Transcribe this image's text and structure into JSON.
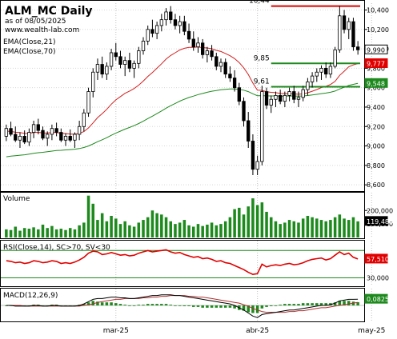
{
  "header": {
    "title": "ALM_MC Daily",
    "date_line": "as of 08/05/2025",
    "site": "www.wealth-lab.com"
  },
  "colors": {
    "price_up": "#ffffff",
    "price_down": "#000000",
    "ema21": "#d42020",
    "ema70": "#1e8a1e",
    "level_line_red": "#e00000",
    "level_line_green": "#1e8a1e",
    "volume": "#1e8a1e",
    "rsi": "#e00000",
    "macd": "#000000",
    "macd_signal": "#b03030",
    "macd_hist": "#1e8a1e",
    "last_price_bg": "#ffffff",
    "ema21_badge": "#e00000",
    "ema70_badge": "#1e8a1e"
  },
  "chart_data": [
    {
      "type": "candlestick",
      "panel": "price",
      "legend": [
        "EMA(Close,21)",
        "EMA(Close,70)"
      ],
      "y_ticks": [
        "10,400",
        "10,200",
        "10,000",
        "9,800",
        "9,600",
        "9,400",
        "9,200",
        "9,000",
        "8,800",
        "8,600"
      ],
      "y_tick_values": [
        10400,
        10200,
        10000,
        9800,
        9600,
        9400,
        9200,
        9000,
        8800,
        8600
      ],
      "ylim": [
        8560,
        10470
      ],
      "x_labels": [
        "mar-25",
        "abr-25",
        "may-25"
      ],
      "x_label_bars": [
        24,
        55,
        80
      ],
      "levels": [
        {
          "label": "10,44",
          "value": 10440,
          "from_bar": 58,
          "color": "red"
        },
        {
          "label": "9,85",
          "value": 9850,
          "from_bar": 58,
          "color": "green"
        },
        {
          "label": "9,61",
          "value": 9610,
          "from_bar": 58,
          "color": "green"
        }
      ],
      "last_price_label": "9,990",
      "ema21_label": "9,777",
      "ema70_label": "9,548",
      "candles": [
        [
          9100,
          9220,
          9050,
          9180
        ],
        [
          9180,
          9250,
          9100,
          9120
        ],
        [
          9120,
          9200,
          9040,
          9060
        ],
        [
          9060,
          9140,
          8980,
          9100
        ],
        [
          9100,
          9160,
          9020,
          9040
        ],
        [
          9040,
          9180,
          9000,
          9140
        ],
        [
          9140,
          9260,
          9080,
          9220
        ],
        [
          9220,
          9280,
          9120,
          9160
        ],
        [
          9160,
          9200,
          9060,
          9080
        ],
        [
          9080,
          9150,
          9000,
          9120
        ],
        [
          9120,
          9220,
          9060,
          9180
        ],
        [
          9180,
          9240,
          9100,
          9140
        ],
        [
          9140,
          9180,
          9040,
          9060
        ],
        [
          9060,
          9130,
          9000,
          9100
        ],
        [
          9100,
          9170,
          9040,
          9060
        ],
        [
          9060,
          9140,
          8980,
          9120
        ],
        [
          9120,
          9260,
          9060,
          9200
        ],
        [
          9200,
          9380,
          9150,
          9340
        ],
        [
          9340,
          9600,
          9300,
          9560
        ],
        [
          9560,
          9800,
          9500,
          9760
        ],
        [
          9760,
          9900,
          9680,
          9840
        ],
        [
          9840,
          9920,
          9700,
          9740
        ],
        [
          9740,
          9860,
          9680,
          9820
        ],
        [
          9820,
          10000,
          9780,
          9960
        ],
        [
          9960,
          10060,
          9880,
          9920
        ],
        [
          9920,
          9980,
          9800,
          9840
        ],
        [
          9840,
          9920,
          9720,
          9880
        ],
        [
          9880,
          9960,
          9760,
          9800
        ],
        [
          9800,
          9880,
          9700,
          9850
        ],
        [
          9850,
          10020,
          9800,
          9980
        ],
        [
          9980,
          10120,
          9940,
          10080
        ],
        [
          10080,
          10240,
          10040,
          10200
        ],
        [
          10200,
          10300,
          10120,
          10160
        ],
        [
          10160,
          10280,
          10100,
          10240
        ],
        [
          10240,
          10360,
          10180,
          10300
        ],
        [
          10300,
          10420,
          10240,
          10380
        ],
        [
          10380,
          10440,
          10260,
          10300
        ],
        [
          10300,
          10360,
          10200,
          10240
        ],
        [
          10240,
          10340,
          10160,
          10280
        ],
        [
          10280,
          10340,
          10140,
          10180
        ],
        [
          10180,
          10260,
          10060,
          10100
        ],
        [
          10100,
          10180,
          9980,
          10020
        ],
        [
          10020,
          10120,
          9960,
          10060
        ],
        [
          10060,
          10100,
          9900,
          9940
        ],
        [
          9940,
          10020,
          9860,
          9980
        ],
        [
          9980,
          10040,
          9880,
          9920
        ],
        [
          9920,
          9960,
          9780,
          9820
        ],
        [
          9820,
          9900,
          9760,
          9860
        ],
        [
          9860,
          9900,
          9700,
          9740
        ],
        [
          9740,
          9820,
          9660,
          9700
        ],
        [
          9700,
          9780,
          9560,
          9600
        ],
        [
          9600,
          9650,
          9420,
          9460
        ],
        [
          9460,
          9500,
          9200,
          9260
        ],
        [
          9260,
          9350,
          8980,
          9050
        ],
        [
          9050,
          9120,
          8700,
          8760
        ],
        [
          8760,
          8900,
          8700,
          8840
        ],
        [
          8840,
          9620,
          8800,
          9560
        ],
        [
          9560,
          9600,
          9380,
          9420
        ],
        [
          9420,
          9520,
          9340,
          9480
        ],
        [
          9480,
          9560,
          9400,
          9520
        ],
        [
          9520,
          9580,
          9430,
          9460
        ],
        [
          9460,
          9560,
          9400,
          9520
        ],
        [
          9520,
          9600,
          9460,
          9560
        ],
        [
          9560,
          9620,
          9440,
          9480
        ],
        [
          9480,
          9560,
          9400,
          9500
        ],
        [
          9500,
          9620,
          9460,
          9580
        ],
        [
          9580,
          9700,
          9520,
          9660
        ],
        [
          9660,
          9760,
          9600,
          9720
        ],
        [
          9720,
          9800,
          9660,
          9760
        ],
        [
          9760,
          9830,
          9680,
          9800
        ],
        [
          9800,
          9860,
          9700,
          9740
        ],
        [
          9740,
          9860,
          9700,
          9820
        ],
        [
          9820,
          10020,
          9800,
          9990
        ],
        [
          9990,
          10440,
          9960,
          10340
        ],
        [
          10340,
          10400,
          10160,
          10200
        ],
        [
          10200,
          10320,
          10100,
          10280
        ],
        [
          10280,
          10320,
          9980,
          10020
        ],
        [
          10020,
          10080,
          9940,
          9990
        ]
      ]
    },
    {
      "type": "bar",
      "panel": "volume",
      "title": "Volume",
      "y_ticks": [
        "200,000",
        "100,000"
      ],
      "y_tick_values": [
        200000,
        100000
      ],
      "ylim": [
        0,
        320000
      ],
      "last_label": "119,488",
      "values": [
        60000,
        55000,
        80000,
        50000,
        70000,
        65000,
        75000,
        60000,
        95000,
        70000,
        85000,
        60000,
        65000,
        55000,
        70000,
        60000,
        90000,
        110000,
        310000,
        250000,
        130000,
        180000,
        120000,
        160000,
        140000,
        100000,
        120000,
        90000,
        80000,
        110000,
        130000,
        150000,
        200000,
        180000,
        170000,
        150000,
        120000,
        100000,
        110000,
        130000,
        90000,
        80000,
        100000,
        85000,
        95000,
        110000,
        90000,
        100000,
        120000,
        150000,
        210000,
        220000,
        170000,
        230000,
        290000,
        240000,
        260000,
        190000,
        150000,
        120000,
        100000,
        110000,
        130000,
        120000,
        110000,
        140000,
        160000,
        150000,
        140000,
        130000,
        120000,
        130000,
        150000,
        170000,
        140000,
        130000,
        150000,
        119488
      ]
    },
    {
      "type": "line",
      "panel": "rsi",
      "title": "RSI(Close,14), SC>70, SV<30",
      "y_ticks": [
        "30,000"
      ],
      "y_tick_values": [
        30
      ],
      "ylim": [
        20,
        82
      ],
      "thresholds": [
        70,
        30
      ],
      "last_label": "57,510",
      "values": [
        55,
        54,
        52,
        53,
        51,
        52,
        55,
        54,
        52,
        53,
        55,
        54,
        51,
        52,
        51,
        53,
        56,
        60,
        66,
        69,
        68,
        64,
        65,
        67,
        65,
        63,
        64,
        62,
        63,
        66,
        68,
        70,
        68,
        69,
        70,
        71,
        68,
        66,
        67,
        64,
        62,
        60,
        61,
        58,
        59,
        57,
        54,
        55,
        52,
        51,
        48,
        45,
        42,
        38,
        35,
        36,
        50,
        46,
        48,
        49,
        48,
        50,
        51,
        49,
        50,
        52,
        55,
        57,
        58,
        59,
        56,
        58,
        63,
        68,
        64,
        66,
        60,
        57.5
      ]
    },
    {
      "type": "line",
      "panel": "macd",
      "title": "MACD(12,26,9)",
      "ylim": [
        -0.2,
        0.2
      ],
      "last_label": "0,0825",
      "macd": [
        0.0,
        0.0,
        -0.01,
        -0.01,
        -0.01,
        -0.01,
        0.0,
        0.0,
        -0.01,
        -0.01,
        0.0,
        0.0,
        -0.01,
        -0.01,
        -0.01,
        -0.01,
        0.0,
        0.02,
        0.05,
        0.08,
        0.09,
        0.09,
        0.1,
        0.11,
        0.11,
        0.1,
        0.1,
        0.09,
        0.09,
        0.1,
        0.11,
        0.12,
        0.13,
        0.13,
        0.14,
        0.14,
        0.14,
        0.13,
        0.13,
        0.12,
        0.11,
        0.1,
        0.09,
        0.08,
        0.07,
        0.06,
        0.05,
        0.04,
        0.03,
        0.02,
        0.0,
        -0.03,
        -0.06,
        -0.1,
        -0.14,
        -0.16,
        -0.12,
        -0.11,
        -0.1,
        -0.09,
        -0.08,
        -0.07,
        -0.06,
        -0.06,
        -0.05,
        -0.04,
        -0.03,
        -0.02,
        -0.01,
        0.0,
        0.0,
        0.01,
        0.03,
        0.06,
        0.07,
        0.08,
        0.08,
        0.0825
      ],
      "signal": [
        0.0,
        0.0,
        0.0,
        0.0,
        -0.01,
        -0.01,
        -0.01,
        -0.01,
        -0.01,
        -0.01,
        -0.01,
        -0.01,
        -0.01,
        -0.01,
        -0.01,
        -0.01,
        -0.01,
        0.0,
        0.01,
        0.02,
        0.04,
        0.05,
        0.06,
        0.07,
        0.08,
        0.08,
        0.09,
        0.09,
        0.09,
        0.09,
        0.1,
        0.1,
        0.11,
        0.11,
        0.12,
        0.12,
        0.13,
        0.13,
        0.13,
        0.13,
        0.12,
        0.12,
        0.11,
        0.11,
        0.1,
        0.09,
        0.08,
        0.07,
        0.06,
        0.05,
        0.04,
        0.03,
        0.01,
        -0.01,
        -0.04,
        -0.06,
        -0.08,
        -0.09,
        -0.09,
        -0.09,
        -0.09,
        -0.09,
        -0.08,
        -0.08,
        -0.07,
        -0.07,
        -0.06,
        -0.05,
        -0.04,
        -0.03,
        -0.03,
        -0.02,
        -0.01,
        0.0,
        0.01,
        0.02,
        0.03,
        0.04
      ]
    }
  ]
}
